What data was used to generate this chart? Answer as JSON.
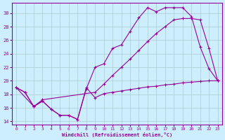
{
  "title": "",
  "xlabel": "Windchill (Refroidissement éolien,°C)",
  "ylabel": "",
  "bg_color": "#cceeff",
  "line_color": "#990099",
  "grid_color": "#aacccc",
  "xlim": [
    -0.5,
    23.5
  ],
  "ylim": [
    13.5,
    31.5
  ],
  "yticks": [
    14,
    16,
    18,
    20,
    22,
    24,
    26,
    28,
    30
  ],
  "xticks": [
    0,
    1,
    2,
    3,
    4,
    5,
    6,
    7,
    8,
    9,
    10,
    11,
    12,
    13,
    14,
    15,
    16,
    17,
    18,
    19,
    20,
    21,
    22,
    23
  ],
  "line1_x": [
    0,
    1,
    2,
    3,
    4,
    5,
    6,
    7,
    8,
    9,
    10,
    11,
    12,
    13,
    14,
    15,
    16,
    17,
    18,
    19,
    20,
    21,
    22,
    23
  ],
  "line1_y": [
    19.0,
    18.3,
    16.2,
    17.0,
    15.8,
    14.9,
    14.9,
    14.3,
    19.0,
    17.5,
    18.1,
    18.3,
    18.5,
    18.7,
    18.9,
    19.1,
    19.2,
    19.4,
    19.5,
    19.7,
    19.8,
    19.9,
    20.0,
    20.0
  ],
  "line2_x": [
    0,
    1,
    2,
    3,
    4,
    5,
    6,
    7,
    8,
    9,
    10,
    11,
    12,
    13,
    14,
    15,
    16,
    17,
    18,
    19,
    20,
    21,
    22,
    23
  ],
  "line2_y": [
    19.0,
    18.3,
    16.2,
    17.0,
    15.8,
    14.9,
    14.9,
    14.3,
    18.8,
    22.0,
    22.5,
    24.8,
    25.3,
    27.3,
    29.3,
    30.8,
    30.2,
    30.8,
    30.8,
    30.8,
    29.5,
    25.0,
    21.8,
    20.0
  ],
  "line3_x": [
    0,
    2,
    3,
    9,
    10,
    11,
    12,
    13,
    14,
    15,
    16,
    17,
    18,
    19,
    20,
    21,
    22,
    23
  ],
  "line3_y": [
    19.0,
    16.2,
    17.2,
    18.3,
    19.5,
    20.8,
    22.0,
    23.2,
    24.5,
    25.8,
    27.0,
    28.0,
    29.0,
    29.2,
    29.2,
    29.0,
    24.8,
    20.0
  ]
}
